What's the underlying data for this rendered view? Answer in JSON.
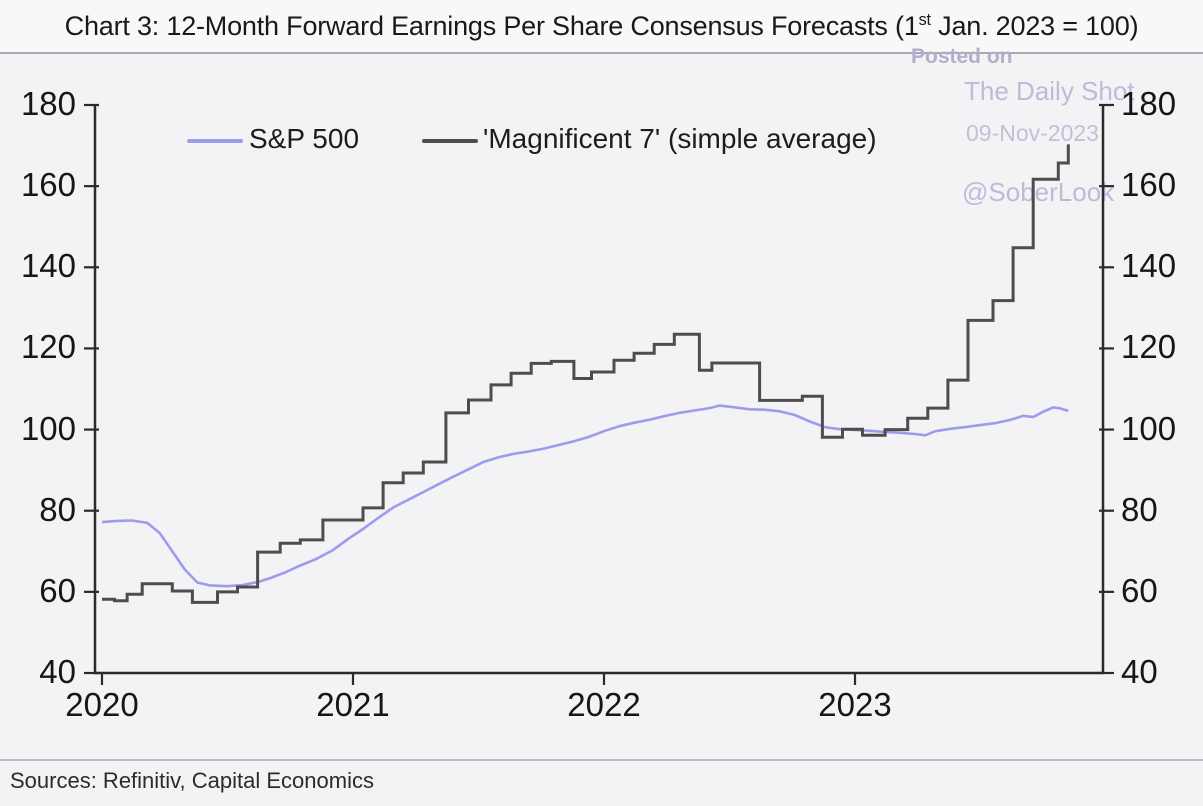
{
  "title": {
    "prefix": "Chart 3: 12-Month Forward Earnings Per Share Consensus Forecasts (1",
    "superscript": "st",
    "suffix": " Jan. 2023 = 100)"
  },
  "watermark": {
    "posted_on": "Posted on",
    "site": "The Daily Shot",
    "date": "09-Nov-2023",
    "handle": "@SoberLook",
    "color": "#bcbcd8"
  },
  "footer": {
    "sources": "Sources: Refinitiv, Capital Economics"
  },
  "chart_data": {
    "type": "line",
    "title": "12-Month Forward Earnings Per Share Consensus Forecasts (1st Jan. 2023 = 100)",
    "xlabel": "",
    "ylabel": "",
    "xlim": [
      2020,
      2023.99
    ],
    "ylim": [
      40,
      180
    ],
    "x_ticks": [
      2020,
      2021,
      2022,
      2023
    ],
    "y_ticks": [
      40,
      60,
      80,
      100,
      120,
      140,
      160,
      180
    ],
    "grid": false,
    "legend_position": "top-inside",
    "axis_color": "#2b2b2b",
    "series": [
      {
        "name": "S&P 500",
        "color": "#9c9cee",
        "interpolation": "linear",
        "points": [
          [
            2020.0,
            77.2
          ],
          [
            2020.06,
            77.5
          ],
          [
            2020.12,
            77.6
          ],
          [
            2020.18,
            77.0
          ],
          [
            2020.23,
            74.5
          ],
          [
            2020.28,
            70.0
          ],
          [
            2020.33,
            65.5
          ],
          [
            2020.38,
            62.3
          ],
          [
            2020.43,
            61.6
          ],
          [
            2020.5,
            61.4
          ],
          [
            2020.56,
            61.7
          ],
          [
            2020.62,
            62.4
          ],
          [
            2020.67,
            63.4
          ],
          [
            2020.73,
            64.8
          ],
          [
            2020.79,
            66.5
          ],
          [
            2020.85,
            68.0
          ],
          [
            2020.92,
            70.3
          ],
          [
            2020.98,
            73.0
          ],
          [
            2021.04,
            75.5
          ],
          [
            2021.1,
            78.2
          ],
          [
            2021.16,
            80.8
          ],
          [
            2021.22,
            82.7
          ],
          [
            2021.28,
            84.6
          ],
          [
            2021.34,
            86.5
          ],
          [
            2021.4,
            88.4
          ],
          [
            2021.46,
            90.2
          ],
          [
            2021.52,
            92.0
          ],
          [
            2021.58,
            93.2
          ],
          [
            2021.64,
            94.0
          ],
          [
            2021.7,
            94.6
          ],
          [
            2021.76,
            95.3
          ],
          [
            2021.82,
            96.2
          ],
          [
            2021.88,
            97.1
          ],
          [
            2021.94,
            98.2
          ],
          [
            2022.0,
            99.6
          ],
          [
            2022.06,
            100.8
          ],
          [
            2022.12,
            101.7
          ],
          [
            2022.18,
            102.4
          ],
          [
            2022.24,
            103.3
          ],
          [
            2022.3,
            104.1
          ],
          [
            2022.36,
            104.7
          ],
          [
            2022.42,
            105.3
          ],
          [
            2022.46,
            105.9
          ],
          [
            2022.52,
            105.5
          ],
          [
            2022.58,
            105.0
          ],
          [
            2022.64,
            104.9
          ],
          [
            2022.7,
            104.5
          ],
          [
            2022.76,
            103.6
          ],
          [
            2022.82,
            102.0
          ],
          [
            2022.88,
            100.6
          ],
          [
            2022.94,
            100.1
          ],
          [
            2023.0,
            99.9
          ],
          [
            2023.06,
            99.7
          ],
          [
            2023.12,
            99.4
          ],
          [
            2023.18,
            99.2
          ],
          [
            2023.24,
            98.9
          ],
          [
            2023.28,
            98.6
          ],
          [
            2023.32,
            99.6
          ],
          [
            2023.38,
            100.2
          ],
          [
            2023.44,
            100.6
          ],
          [
            2023.5,
            101.1
          ],
          [
            2023.56,
            101.6
          ],
          [
            2023.62,
            102.4
          ],
          [
            2023.67,
            103.4
          ],
          [
            2023.71,
            103.1
          ],
          [
            2023.75,
            104.4
          ],
          [
            2023.79,
            105.5
          ],
          [
            2023.82,
            105.2
          ],
          [
            2023.85,
            104.6
          ]
        ]
      },
      {
        "name": "'Magnificent 7' (simple average)",
        "color": "#4d4d4d",
        "interpolation": "step-after",
        "points": [
          [
            2020.0,
            58.2
          ],
          [
            2020.05,
            57.8
          ],
          [
            2020.1,
            59.4
          ],
          [
            2020.16,
            62.0
          ],
          [
            2020.28,
            60.2
          ],
          [
            2020.36,
            57.4
          ],
          [
            2020.46,
            60.0
          ],
          [
            2020.54,
            61.2
          ],
          [
            2020.62,
            69.8
          ],
          [
            2020.71,
            72.0
          ],
          [
            2020.79,
            72.8
          ],
          [
            2020.88,
            77.7
          ],
          [
            2021.04,
            80.7
          ],
          [
            2021.12,
            86.9
          ],
          [
            2021.2,
            89.3
          ],
          [
            2021.28,
            92.0
          ],
          [
            2021.37,
            104.1
          ],
          [
            2021.46,
            107.3
          ],
          [
            2021.55,
            111.0
          ],
          [
            2021.63,
            113.9
          ],
          [
            2021.71,
            116.3
          ],
          [
            2021.79,
            116.8
          ],
          [
            2021.88,
            112.6
          ],
          [
            2021.95,
            114.2
          ],
          [
            2022.04,
            117.1
          ],
          [
            2022.12,
            118.8
          ],
          [
            2022.2,
            121.0
          ],
          [
            2022.28,
            123.5
          ],
          [
            2022.38,
            114.6
          ],
          [
            2022.43,
            116.4
          ],
          [
            2022.62,
            107.2
          ],
          [
            2022.79,
            108.2
          ],
          [
            2022.87,
            98.1
          ],
          [
            2022.95,
            100.1
          ],
          [
            2023.03,
            98.6
          ],
          [
            2023.12,
            100.0
          ],
          [
            2023.21,
            102.8
          ],
          [
            2023.29,
            105.3
          ],
          [
            2023.37,
            112.2
          ],
          [
            2023.45,
            126.9
          ],
          [
            2023.55,
            131.8
          ],
          [
            2023.63,
            144.8
          ],
          [
            2023.71,
            161.7
          ],
          [
            2023.81,
            165.7
          ],
          [
            2023.85,
            170.3
          ]
        ]
      }
    ]
  }
}
